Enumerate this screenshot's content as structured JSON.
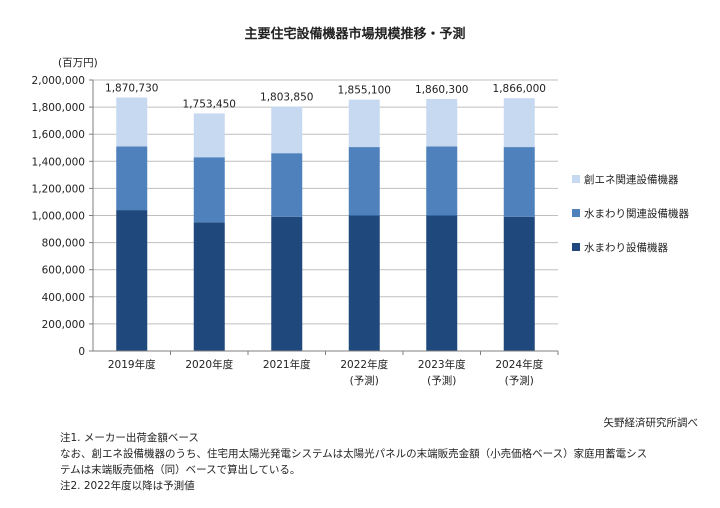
{
  "chart_data": {
    "type": "bar",
    "stacked": true,
    "title": "主要住宅設備機器市場規模推移・予測",
    "unit_label": "(百万円)",
    "categories": [
      "2019年度",
      "2020年度",
      "2021年度",
      "2022年度",
      "2023年度",
      "2024年度"
    ],
    "category_sublabels": [
      "",
      "",
      "",
      "(予測)",
      "(予測)",
      "(予測)"
    ],
    "totals": [
      "1,870,730",
      "1,753,450",
      "1,803,850",
      "1,855,100",
      "1,860,300",
      "1,866,000"
    ],
    "total_values": [
      1870730,
      1753450,
      1803850,
      1855100,
      1860300,
      1866000
    ],
    "series": [
      {
        "name": "水まわり設備機器",
        "color": "#1f497d",
        "values": [
          1040000,
          950000,
          990000,
          1000000,
          1000000,
          990000
        ]
      },
      {
        "name": "水まわり関連設備機器",
        "color": "#4f81bd",
        "values": [
          470000,
          480000,
          470000,
          505000,
          510000,
          515000
        ]
      },
      {
        "name": "創エネ関連設備機器",
        "color": "#c6d9f1",
        "values": [
          360730,
          323450,
          343850,
          350100,
          350300,
          361000
        ]
      }
    ],
    "legend_order": [
      "創エネ関連設備機器",
      "水まわり関連設備機器",
      "水まわり設備機器"
    ],
    "ylim": [
      0,
      2000000
    ],
    "yticks": [
      "0",
      "200,000",
      "400,000",
      "600,000",
      "800,000",
      "1,000,000",
      "1,200,000",
      "1,400,000",
      "1,600,000",
      "1,800,000",
      "2,000,000"
    ],
    "grid": true,
    "legend_position": "right"
  },
  "source": "矢野経済研究所調べ",
  "notes": [
    "注1. メーカー出荷金額ベース",
    "なお、創エネ設備機器のうち、住宅用太陽光発電システムは太陽光パネルの末端販売金額（小売価格ベース）家庭用蓄電シス",
    "テムは末端販売価格（同）ベースで算出している。",
    "注2. 2022年度以降は予測値"
  ]
}
